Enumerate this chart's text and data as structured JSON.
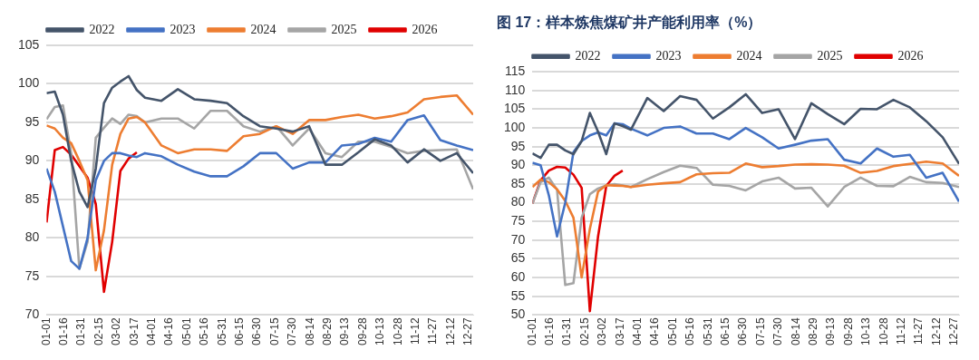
{
  "chart_data": [
    {
      "type": "line",
      "legend": "top",
      "grid": "y",
      "marker": "none",
      "line_style": "solid",
      "x": [
        "--01-01",
        "--01-08",
        "--01-15",
        "--01-22",
        "--01-29",
        "--02-05",
        "--02-12",
        "--02-19",
        "--02-26",
        "--03-05",
        "--03-12",
        "--03-19",
        "--03-26",
        "--04-09",
        "--04-23",
        "--05-07",
        "--05-21",
        "--06-04",
        "--06-18",
        "--07-02",
        "--07-16",
        "--07-30",
        "--08-13",
        "--08-27",
        "--09-10",
        "--09-24",
        "--10-08",
        "--10-22",
        "--11-05",
        "--11-19",
        "--12-03",
        "--12-17",
        "--12-31"
      ],
      "xlim": [
        "--01-01",
        "--12-31"
      ],
      "xticks": [
        {
          "value": "--01-01",
          "label": "01-01"
        },
        {
          "value": "--01-16",
          "label": "01-16"
        },
        {
          "value": "--01-31",
          "label": "01-31"
        },
        {
          "value": "--02-15",
          "label": "02-15"
        },
        {
          "value": "--03-02",
          "label": "03-02"
        },
        {
          "value": "--03-17",
          "label": "03-17"
        },
        {
          "value": "--04-01",
          "label": "04-01"
        },
        {
          "value": "--04-16",
          "label": "04-16"
        },
        {
          "value": "--05-01",
          "label": "05-01"
        },
        {
          "value": "--05-16",
          "label": "05-16"
        },
        {
          "value": "--05-31",
          "label": "05-31"
        },
        {
          "value": "--06-15",
          "label": "06-15"
        },
        {
          "value": "--06-30",
          "label": "06-30"
        },
        {
          "value": "--07-15",
          "label": "07-15"
        },
        {
          "value": "--07-30",
          "label": "07-30"
        },
        {
          "value": "--08-14",
          "label": "08-14"
        },
        {
          "value": "--08-29",
          "label": "08-29"
        },
        {
          "value": "--09-13",
          "label": "09-13"
        },
        {
          "value": "--09-28",
          "label": "09-28"
        },
        {
          "value": "--10-13",
          "label": "10-13"
        },
        {
          "value": "--10-28",
          "label": "10-28"
        },
        {
          "value": "--11-12",
          "label": "11-12"
        },
        {
          "value": "--11-27",
          "label": "11-27"
        },
        {
          "value": "--12-12",
          "label": "12-12"
        },
        {
          "value": "--12-27",
          "label": "12-27"
        }
      ],
      "ylim": [
        70,
        105
      ],
      "yticks": [
        70,
        75,
        80,
        85,
        90,
        95,
        100,
        105
      ],
      "series": [
        {
          "name": "2022",
          "color": "#44546a",
          "values": [
            98.8,
            99,
            96,
            90,
            86,
            84,
            89,
            97.5,
            99.5,
            100.3,
            101,
            99.2,
            98.2,
            97.8,
            99.3,
            98,
            97.8,
            97.5,
            95.8,
            94.5,
            94.2,
            93.8,
            94.5,
            89.5,
            89.5,
            91.1,
            92.8,
            92,
            89.8,
            91.5,
            90,
            91,
            88.4
          ]
        },
        {
          "name": "2023",
          "color": "#4472c4",
          "values": [
            89,
            86,
            81.5,
            77,
            76,
            80,
            87.5,
            90,
            91,
            91,
            90.7,
            90.5,
            91,
            90.6,
            89.5,
            88.6,
            88,
            88,
            89.3,
            91,
            91,
            89,
            89.8,
            89.8,
            92,
            92.2,
            93,
            92.5,
            95.3,
            95.9,
            92.7,
            92,
            91.4
          ]
        },
        {
          "name": "2024",
          "color": "#ed7d31",
          "values": [
            94.6,
            94.2,
            93,
            92.3,
            90,
            87.5,
            75.8,
            81,
            89.5,
            93.5,
            95.5,
            95.7,
            95,
            92,
            91,
            91.5,
            91.5,
            91.3,
            93.2,
            93.5,
            94.5,
            93.5,
            95.3,
            95.3,
            95.7,
            96,
            95.5,
            95.8,
            96.3,
            98,
            98.3,
            98.5,
            96
          ]
        },
        {
          "name": "2025",
          "color": "#a5a5a5",
          "values": [
            95.4,
            97,
            97.2,
            91,
            76,
            79.5,
            93,
            94.3,
            95.5,
            94.8,
            96,
            95.8,
            95,
            95.5,
            95.5,
            94.2,
            96.5,
            96.5,
            94.5,
            93.8,
            94.5,
            92,
            94.2,
            91,
            90.5,
            92.5,
            92.5,
            91.8,
            91,
            91.3,
            91.4,
            91.5,
            86.3
          ]
        },
        {
          "name": "2026",
          "color": "#e00000",
          "values": [
            82,
            91.4,
            91.8,
            90.8,
            89.3,
            87.8,
            84.4,
            73,
            79.5,
            88.7,
            90.3,
            91.1,
            null,
            null,
            null,
            null,
            null,
            null,
            null,
            null,
            null,
            null,
            null,
            null,
            null,
            null,
            null,
            null,
            null,
            null,
            null,
            null,
            null
          ]
        }
      ]
    },
    {
      "type": "line",
      "title": "图 17：样本炼焦煤矿井产能利用率（%）",
      "legend": "top",
      "grid": "y",
      "marker": "none",
      "line_style": "solid",
      "x": [
        "--01-01",
        "--01-08",
        "--01-15",
        "--01-22",
        "--01-29",
        "--02-05",
        "--02-12",
        "--02-19",
        "--02-26",
        "--03-05",
        "--03-12",
        "--03-19",
        "--03-26",
        "--04-09",
        "--04-23",
        "--05-07",
        "--05-21",
        "--06-04",
        "--06-18",
        "--07-02",
        "--07-16",
        "--07-30",
        "--08-13",
        "--08-27",
        "--09-10",
        "--09-24",
        "--10-08",
        "--10-22",
        "--11-05",
        "--11-19",
        "--12-03",
        "--12-17",
        "--12-31"
      ],
      "xlim": [
        "--01-01",
        "--12-31"
      ],
      "xticks": [
        {
          "value": "--01-01",
          "label": "01-01"
        },
        {
          "value": "--01-16",
          "label": "01-16"
        },
        {
          "value": "--01-31",
          "label": "01-31"
        },
        {
          "value": "--02-15",
          "label": "02-15"
        },
        {
          "value": "--03-02",
          "label": "03-02"
        },
        {
          "value": "--03-17",
          "label": "03-17"
        },
        {
          "value": "--04-01",
          "label": "04-01"
        },
        {
          "value": "--04-16",
          "label": "04-16"
        },
        {
          "value": "--05-01",
          "label": "05-01"
        },
        {
          "value": "--05-16",
          "label": "05-16"
        },
        {
          "value": "--05-31",
          "label": "05-31"
        },
        {
          "value": "--06-15",
          "label": "06-15"
        },
        {
          "value": "--06-30",
          "label": "06-30"
        },
        {
          "value": "--07-15",
          "label": "07-15"
        },
        {
          "value": "--07-30",
          "label": "07-30"
        },
        {
          "value": "--08-14",
          "label": "08-14"
        },
        {
          "value": "--08-29",
          "label": "08-29"
        },
        {
          "value": "--09-13",
          "label": "09-13"
        },
        {
          "value": "--09-28",
          "label": "09-28"
        },
        {
          "value": "--10-13",
          "label": "10-13"
        },
        {
          "value": "--10-28",
          "label": "10-28"
        },
        {
          "value": "--11-12",
          "label": "11-12"
        },
        {
          "value": "--11-27",
          "label": "11-27"
        },
        {
          "value": "--12-12",
          "label": "12-12"
        },
        {
          "value": "--12-27",
          "label": "12-27"
        }
      ],
      "ylim": [
        50,
        115
      ],
      "yticks": [
        50,
        55,
        60,
        65,
        70,
        75,
        80,
        85,
        90,
        95,
        100,
        105,
        110,
        115
      ],
      "series": [
        {
          "name": "2022",
          "color": "#44546a",
          "values": [
            93.2,
            92,
            95.5,
            95.5,
            94,
            93,
            96.5,
            104,
            99,
            93,
            101.2,
            100.5,
            99.5,
            108,
            104.5,
            108.5,
            107.5,
            102.5,
            105.5,
            109,
            104,
            105,
            97,
            106.6,
            103.7,
            101,
            105.1,
            105,
            107.5,
            105.5,
            101.8,
            97.5,
            90.4
          ]
        },
        {
          "name": "2023",
          "color": "#4472c4",
          "values": [
            90.7,
            90,
            82,
            71,
            80,
            93.5,
            96.5,
            98,
            98.8,
            98,
            101.2,
            101,
            99.8,
            98,
            100,
            100.4,
            98.5,
            98.5,
            97,
            100,
            97.5,
            94.5,
            95.5,
            96.6,
            97,
            91.5,
            90.5,
            94.5,
            92.3,
            92.8,
            86.7,
            88,
            80.3
          ]
        },
        {
          "name": "2024",
          "color": "#ed7d31",
          "values": [
            84.2,
            86.2,
            85.5,
            83.6,
            80.5,
            76,
            60,
            73,
            83,
            84.7,
            84.6,
            84.5,
            84.2,
            84.8,
            85.2,
            85.5,
            87.6,
            87.9,
            88,
            90.5,
            89.5,
            89.8,
            90.2,
            90.3,
            90.2,
            89.9,
            88,
            88.5,
            89.8,
            90.4,
            91,
            90.5,
            87.2
          ]
        },
        {
          "name": "2025",
          "color": "#a5a5a5",
          "values": [
            79.8,
            85.5,
            86.7,
            83.5,
            58,
            58.5,
            76,
            82.3,
            83.8,
            84.6,
            85,
            84.6,
            84.2,
            86.3,
            88.2,
            89.9,
            89.3,
            84.8,
            84.5,
            83.3,
            85.7,
            86.7,
            83.8,
            84,
            79,
            84.2,
            86.7,
            84.5,
            84.4,
            86.9,
            85.5,
            85.3,
            84.2
          ]
        },
        {
          "name": "2026",
          "color": "#e00000",
          "values": [
            79.8,
            86,
            88.6,
            89.6,
            89.4,
            87.5,
            84,
            51,
            71,
            84.5,
            87.2,
            88.6,
            null,
            null,
            null,
            null,
            null,
            null,
            null,
            null,
            null,
            null,
            null,
            null,
            null,
            null,
            null,
            null,
            null,
            null,
            null,
            null,
            null
          ]
        }
      ]
    }
  ]
}
